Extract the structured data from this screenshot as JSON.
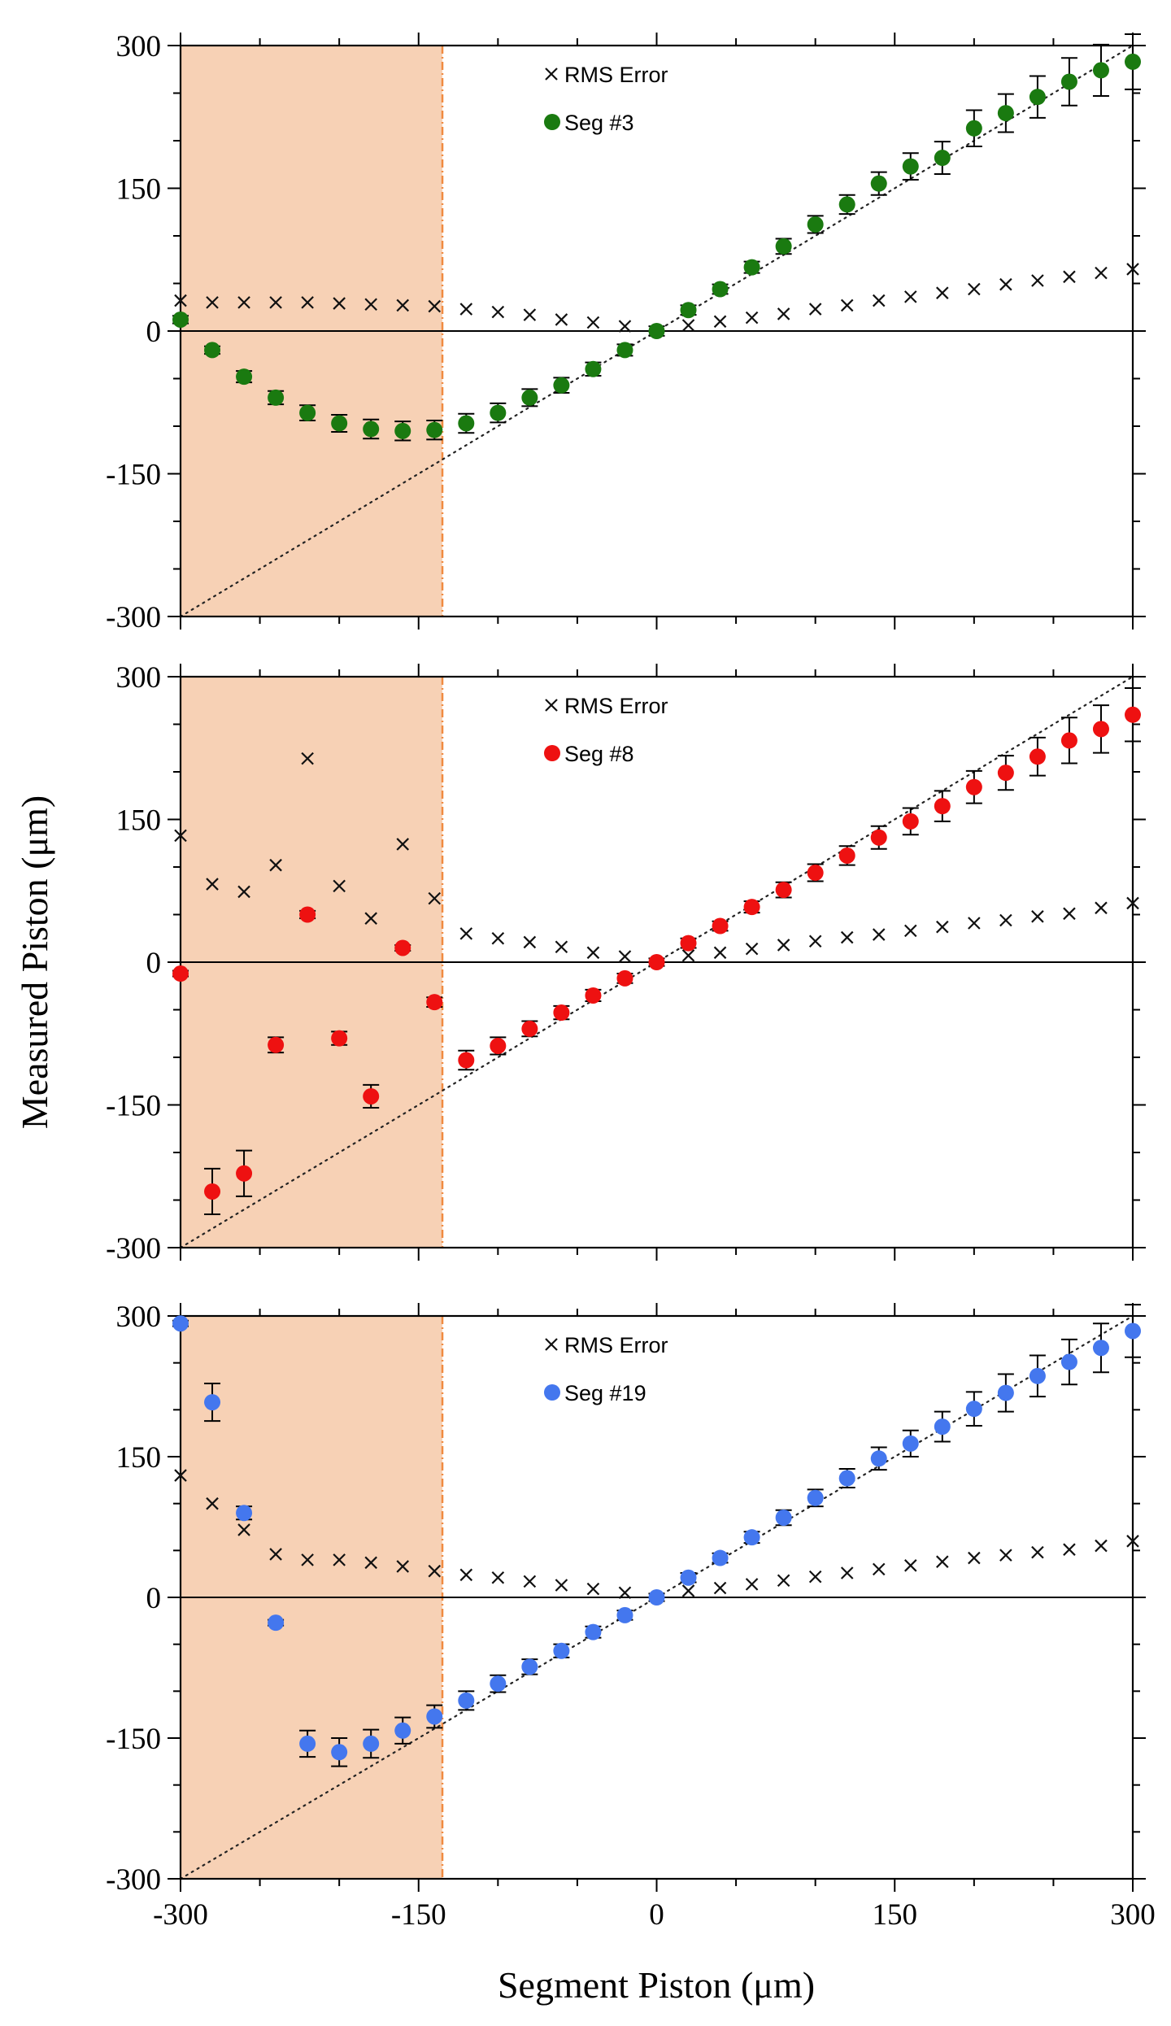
{
  "chart_data": {
    "type": "scatter",
    "xlabel": "Segment Piston (μm)",
    "ylabel": "Measured Piston (μm)",
    "shared_x_axis": true,
    "colors": {
      "seg3": "#1a7a10",
      "seg8": "#ee1111",
      "seg19": "#4477ee",
      "shade": "#f7d1b5",
      "shade_edge": "#f08a40",
      "rms": "#111111"
    },
    "panels": [
      {
        "id": "seg3",
        "xlim": [
          -300,
          300
        ],
        "ylim": [
          -300,
          300
        ],
        "yticks": [
          300,
          150,
          0,
          -150,
          -300
        ],
        "xticks": [
          -300,
          -150,
          0,
          150,
          300
        ],
        "shaded_region": [
          -300,
          -135
        ],
        "reference_line": "y = x",
        "legend": {
          "position": "top-center",
          "rms_label": "RMS Error",
          "series_label": "Seg #3"
        },
        "series": [
          {
            "name": "Seg #3",
            "x": [
              -300,
              -280,
              -260,
              -240,
              -220,
              -200,
              -180,
              -160,
              -140,
              -120,
              -100,
              -80,
              -60,
              -40,
              -20,
              0,
              20,
              40,
              60,
              80,
              100,
              120,
              140,
              160,
              180,
              200,
              220,
              240,
              260,
              280,
              300
            ],
            "y": [
              12,
              -20,
              -48,
              -70,
              -86,
              -97,
              -103,
              -105,
              -104,
              -97,
              -86,
              -70,
              -57,
              -40,
              -20,
              0,
              22,
              44,
              67,
              89,
              112,
              133,
              155,
              173,
              182,
              213,
              229,
              246,
              262,
              274,
              283
            ],
            "err": [
              4,
              4,
              6,
              7,
              8,
              9,
              10,
              10,
              10,
              10,
              10,
              9,
              8,
              7,
              6,
              5,
              5,
              5,
              6,
              8,
              9,
              10,
              12,
              14,
              17,
              19,
              20,
              22,
              25,
              27,
              29
            ]
          },
          {
            "name": "RMS Error",
            "x": [
              -300,
              -280,
              -260,
              -240,
              -220,
              -200,
              -180,
              -160,
              -140,
              -120,
              -100,
              -80,
              -60,
              -40,
              -20,
              0,
              20,
              40,
              60,
              80,
              100,
              120,
              140,
              160,
              180,
              200,
              220,
              240,
              260,
              280,
              300
            ],
            "y": [
              32,
              30,
              30,
              30,
              30,
              29,
              28,
              27,
              26,
              23,
              20,
              17,
              12,
              9,
              5,
              null,
              6,
              10,
              14,
              18,
              23,
              27,
              32,
              36,
              40,
              44,
              49,
              53,
              57,
              61,
              65
            ]
          }
        ]
      },
      {
        "id": "seg8",
        "xlim": [
          -300,
          300
        ],
        "ylim": [
          -300,
          300
        ],
        "yticks": [
          300,
          150,
          0,
          -150,
          -300
        ],
        "xticks": [
          -300,
          -150,
          0,
          150,
          300
        ],
        "shaded_region": [
          -300,
          -135
        ],
        "reference_line": "y = x",
        "legend": {
          "position": "top-center",
          "rms_label": "RMS Error",
          "series_label": "Seg #8"
        },
        "series": [
          {
            "name": "Seg #8",
            "x": [
              -300,
              -280,
              -260,
              -240,
              -220,
              -200,
              -180,
              -160,
              -140,
              -120,
              -100,
              -80,
              -60,
              -40,
              -20,
              0,
              20,
              40,
              60,
              80,
              100,
              120,
              140,
              160,
              180,
              200,
              220,
              240,
              260,
              280,
              300
            ],
            "y": [
              -12,
              -241,
              -222,
              -87,
              50,
              -80,
              -141,
              15,
              -42,
              -103,
              -88,
              -70,
              -53,
              -35,
              -17,
              0,
              20,
              38,
              58,
              76,
              94,
              112,
              131,
              148,
              164,
              184,
              199,
              216,
              233,
              245,
              260
            ],
            "err": [
              3,
              24,
              24,
              8,
              4,
              7,
              12,
              3,
              5,
              10,
              9,
              8,
              7,
              6,
              5,
              4,
              5,
              5,
              6,
              8,
              9,
              10,
              12,
              14,
              16,
              17,
              18,
              20,
              24,
              25,
              28
            ]
          },
          {
            "name": "RMS Error",
            "x": [
              -300,
              -280,
              -260,
              -240,
              -220,
              -200,
              -180,
              -160,
              -140,
              -120,
              -100,
              -80,
              -60,
              -40,
              -20,
              0,
              20,
              40,
              60,
              80,
              100,
              120,
              140,
              160,
              180,
              200,
              220,
              240,
              260,
              280,
              300
            ],
            "y": [
              133,
              82,
              74,
              102,
              214,
              80,
              46,
              124,
              67,
              30,
              25,
              21,
              16,
              10,
              6,
              null,
              7,
              10,
              14,
              18,
              22,
              26,
              29,
              33,
              37,
              41,
              44,
              48,
              51,
              57,
              62
            ]
          }
        ]
      },
      {
        "id": "seg19",
        "xlim": [
          -300,
          300
        ],
        "ylim": [
          -300,
          300
        ],
        "yticks": [
          300,
          150,
          0,
          -150,
          -300
        ],
        "xticks": [
          -300,
          -150,
          0,
          150,
          300
        ],
        "shaded_region": [
          -300,
          -135
        ],
        "reference_line": "y = x",
        "legend": {
          "position": "top-center",
          "rms_label": "RMS Error",
          "series_label": "Seg #19"
        },
        "series": [
          {
            "name": "Seg #19",
            "x": [
              -300,
              -280,
              -260,
              -240,
              -220,
              -200,
              -180,
              -160,
              -140,
              -120,
              -100,
              -80,
              -60,
              -40,
              -20,
              0,
              20,
              40,
              60,
              80,
              100,
              120,
              140,
              160,
              180,
              200,
              220,
              240,
              260,
              280,
              300
            ],
            "y": [
              292,
              208,
              90,
              -27,
              -156,
              -165,
              -156,
              -142,
              -127,
              -110,
              -92,
              -74,
              -57,
              -37,
              -19,
              0,
              21,
              42,
              64,
              85,
              106,
              127,
              148,
              164,
              182,
              201,
              218,
              236,
              251,
              266,
              284
            ],
            "err": [
              3,
              20,
              7,
              3,
              14,
              15,
              15,
              14,
              12,
              10,
              9,
              8,
              7,
              6,
              5,
              4,
              5,
              5,
              6,
              8,
              9,
              10,
              12,
              14,
              16,
              18,
              20,
              22,
              24,
              26,
              28
            ]
          },
          {
            "name": "RMS Error",
            "x": [
              -300,
              -280,
              -260,
              -240,
              -220,
              -200,
              -180,
              -160,
              -140,
              -120,
              -100,
              -80,
              -60,
              -40,
              -20,
              0,
              20,
              40,
              60,
              80,
              100,
              120,
              140,
              160,
              180,
              200,
              220,
              240,
              260,
              280,
              300
            ],
            "y": [
              130,
              100,
              72,
              46,
              40,
              40,
              37,
              33,
              28,
              24,
              21,
              17,
              13,
              9,
              5,
              null,
              7,
              10,
              14,
              18,
              22,
              26,
              30,
              34,
              38,
              42,
              45,
              48,
              51,
              55,
              60
            ]
          }
        ]
      }
    ]
  }
}
